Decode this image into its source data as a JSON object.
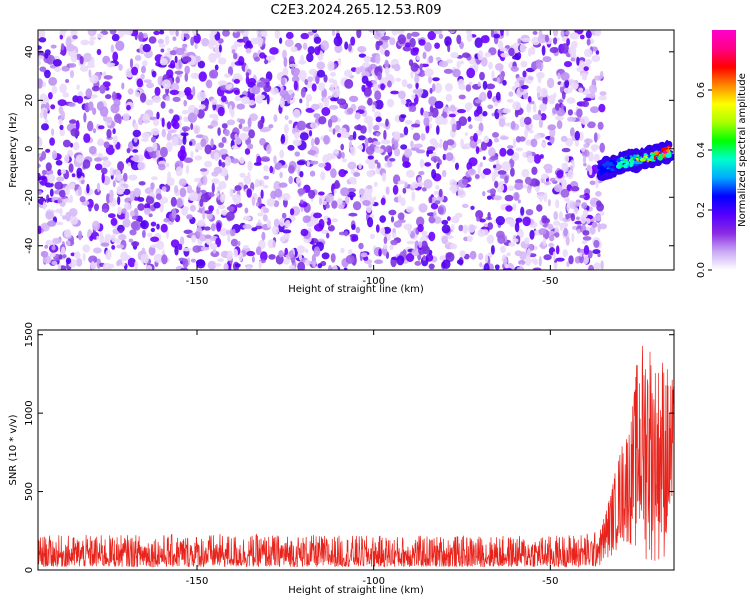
{
  "title": "C2E3.2024.265.12.53.R09",
  "chart_data": [
    {
      "type": "heatmap",
      "title": "C2E3.2024.265.12.53.R09",
      "xlabel": "Height of straight line (km)",
      "ylabel": "Frequency (Hz)",
      "xlim": [
        -195,
        -15
      ],
      "ylim": [
        -50,
        49
      ],
      "x_ticks": [
        -150,
        -100,
        -50
      ],
      "y_ticks": [
        -40,
        -20,
        0,
        20,
        40
      ],
      "colorbar": {
        "label": "Normalized spectral amplitude",
        "range": [
          0,
          0.8
        ],
        "ticks": [
          "0.0",
          "0.2",
          "0.4",
          "0.6"
        ],
        "colors": [
          "#ffffff",
          "#c9a8f5",
          "#8a2be2",
          "#5500ff",
          "#0000ff",
          "#00aaff",
          "#00ffcc",
          "#00ff00",
          "#aaff00",
          "#ffff00",
          "#ff8800",
          "#ff0000",
          "#ff0088",
          "#ff00cc"
        ]
      },
      "background_noise": {
        "x_range": [
          -195,
          -35
        ],
        "y_range": [
          -50,
          49
        ],
        "typical_amplitude": 0.05
      },
      "signal": [
        {
          "x": -36,
          "y": -9
        },
        {
          "x": -34,
          "y": -8
        },
        {
          "x": -32,
          "y": -7
        },
        {
          "x": -30,
          "y": -6
        },
        {
          "x": -28,
          "y": -5
        },
        {
          "x": -26,
          "y": -5
        },
        {
          "x": -24,
          "y": -4
        },
        {
          "x": -22,
          "y": -3
        },
        {
          "x": -20,
          "y": -3
        },
        {
          "x": -18,
          "y": -2
        },
        {
          "x": -16,
          "y": -1
        }
      ]
    },
    {
      "type": "line",
      "xlabel": "Height of straight line (km)",
      "ylabel": "SNR (10 * v/v)",
      "xlim": [
        -195,
        -15
      ],
      "ylim": [
        0,
        1530
      ],
      "x_ticks": [
        -150,
        -100,
        -50
      ],
      "y_ticks": [
        0,
        500,
        1000,
        1500
      ],
      "color": "#e8231b",
      "envelope": [
        {
          "x": -195,
          "min": 20,
          "max": 220
        },
        {
          "x": -150,
          "min": 20,
          "max": 230
        },
        {
          "x": -100,
          "min": 20,
          "max": 220
        },
        {
          "x": -50,
          "min": 20,
          "max": 220
        },
        {
          "x": -36,
          "min": 20,
          "max": 250
        },
        {
          "x": -33,
          "min": 80,
          "max": 500
        },
        {
          "x": -30,
          "min": 150,
          "max": 800
        },
        {
          "x": -27,
          "min": 150,
          "max": 1000
        },
        {
          "x": -25,
          "min": 60,
          "max": 1450
        },
        {
          "x": -22,
          "min": 40,
          "max": 1530
        },
        {
          "x": -20,
          "min": 40,
          "max": 1300
        },
        {
          "x": -18,
          "min": 50,
          "max": 1400
        },
        {
          "x": -16,
          "min": 100,
          "max": 1250
        },
        {
          "x": -15,
          "min": 200,
          "max": 1200
        }
      ]
    }
  ]
}
